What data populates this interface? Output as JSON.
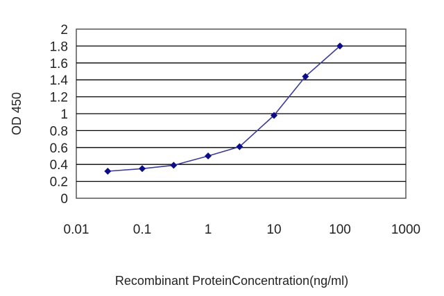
{
  "chart_data": {
    "type": "line",
    "xscale": "log",
    "x": [
      0.03,
      0.1,
      0.3,
      1,
      3,
      10,
      30,
      100
    ],
    "series": [
      {
        "values": [
          0.32,
          0.35,
          0.39,
          0.5,
          0.61,
          0.98,
          1.44,
          1.8
        ]
      }
    ],
    "xlim": [
      0.01,
      1000
    ],
    "ylim": [
      0,
      2
    ],
    "xticks": [
      "0.01",
      "0.1",
      "1",
      "10",
      "100",
      "1000"
    ],
    "yticks": [
      "0",
      "0.2",
      "0.4",
      "0.6",
      "0.8",
      "1",
      "1.2",
      "1.4",
      "1.6",
      "1.8",
      "2"
    ],
    "xlabel": "Recombinant ProteinConcentration(ng/ml)",
    "ylabel": "OD 450",
    "grid": "horizontal",
    "line_color": "#3a3a9a",
    "marker_color": "#0d0d8a",
    "marker": "diamond"
  }
}
